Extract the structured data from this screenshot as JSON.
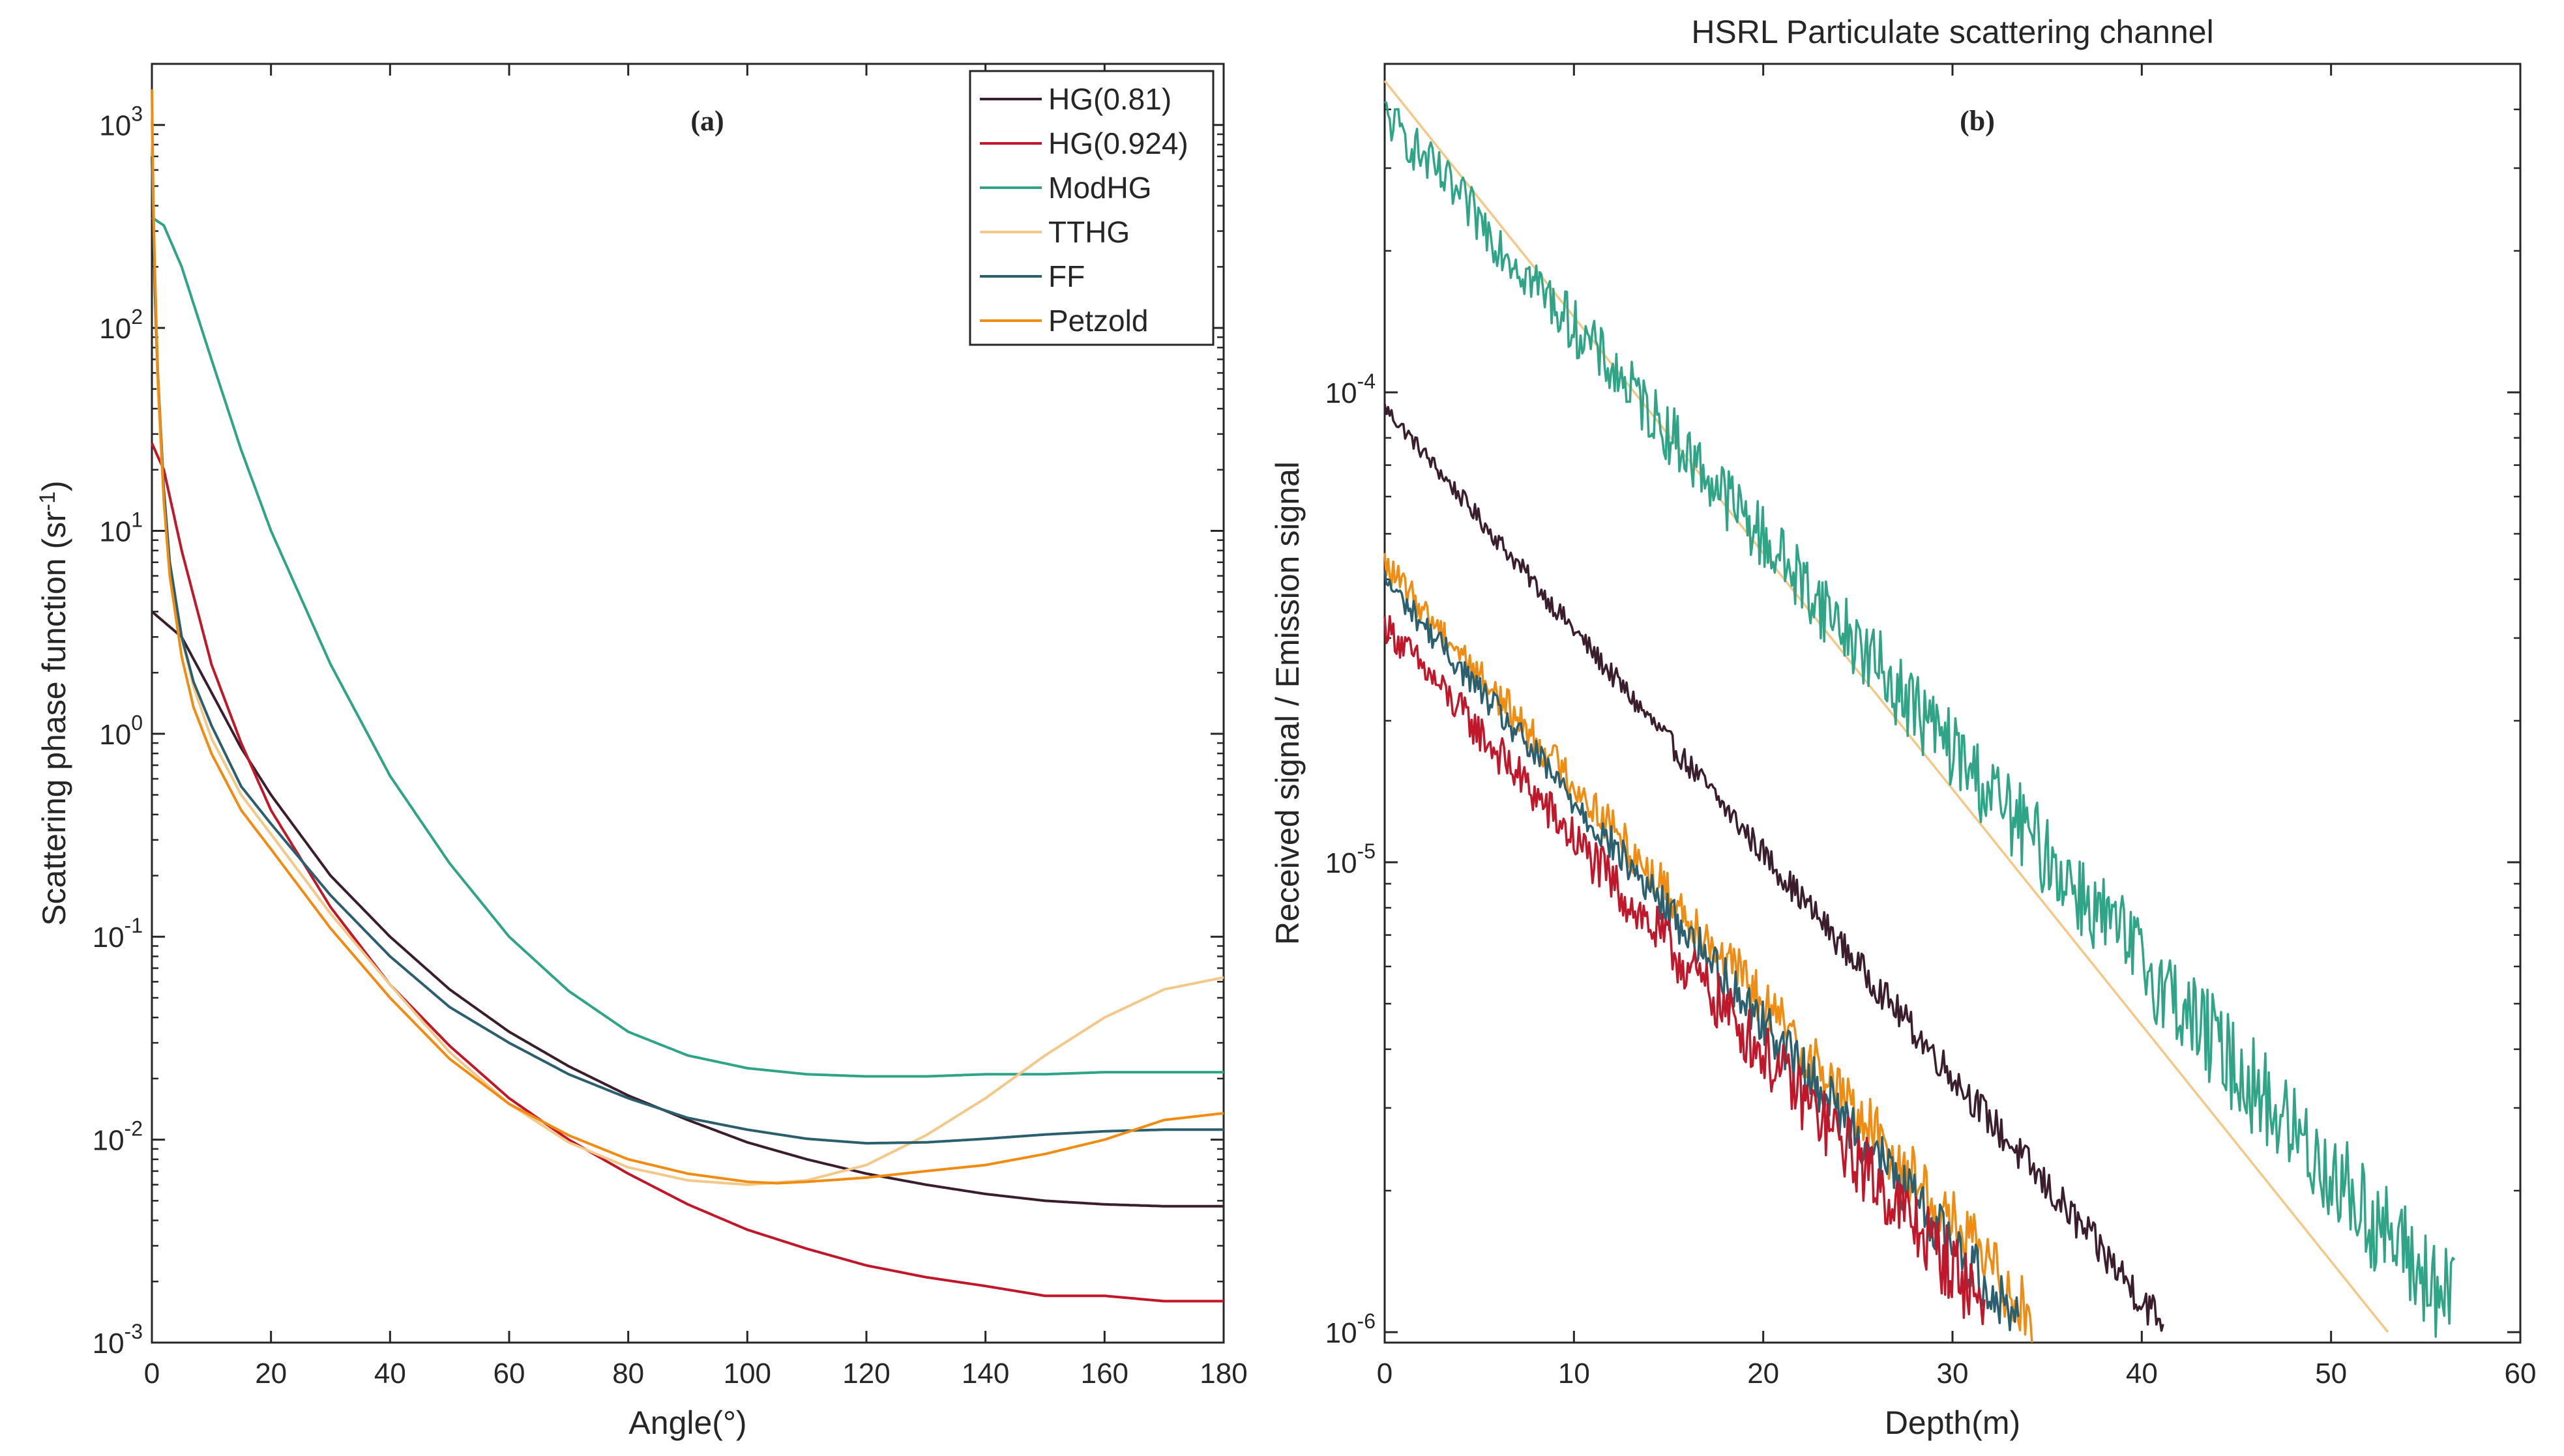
{
  "chart_data": [
    {
      "type": "line",
      "panel_label": "(a)",
      "xlabel": "Angle(°)",
      "ylabel": "Scattering phase function (sr-1)",
      "xlim": [
        0,
        180
      ],
      "ylim": [
        0.001,
        2000
      ],
      "yscale": "log",
      "xticks": [
        "0",
        "20",
        "40",
        "60",
        "80",
        "100",
        "120",
        "140",
        "160",
        "180"
      ],
      "yticks": [
        {
          "base": "10",
          "exp": "3"
        },
        {
          "base": "10",
          "exp": "2"
        },
        {
          "base": "10",
          "exp": "1"
        },
        {
          "base": "10",
          "exp": "0"
        },
        {
          "base": "10",
          "exp": "-1"
        },
        {
          "base": "10",
          "exp": "-2"
        },
        {
          "base": "10",
          "exp": "-3"
        }
      ],
      "legend_position": "top-right",
      "series": [
        {
          "name": "HG(0.81)",
          "color": "#3a1e2e",
          "x": [
            0,
            5,
            10,
            15,
            20,
            30,
            40,
            50,
            60,
            70,
            80,
            90,
            100,
            110,
            120,
            130,
            140,
            150,
            160,
            170,
            180
          ],
          "y": [
            4.0,
            3.0,
            1.6,
            0.85,
            0.5,
            0.2,
            0.1,
            0.055,
            0.034,
            0.023,
            0.0165,
            0.0125,
            0.0097,
            0.008,
            0.0068,
            0.006,
            0.0054,
            0.005,
            0.0048,
            0.0047,
            0.0047
          ]
        },
        {
          "name": "HG(0.924)",
          "color": "#c0182a",
          "x": [
            0,
            2,
            5,
            10,
            15,
            20,
            30,
            40,
            50,
            60,
            70,
            80,
            90,
            100,
            110,
            120,
            130,
            140,
            150,
            160,
            170,
            180
          ],
          "y": [
            27,
            20,
            8,
            2.2,
            0.9,
            0.42,
            0.14,
            0.058,
            0.029,
            0.016,
            0.01,
            0.0068,
            0.0048,
            0.0036,
            0.0029,
            0.0024,
            0.0021,
            0.0019,
            0.0017,
            0.0017,
            0.0016,
            0.0016
          ]
        },
        {
          "name": "ModHG",
          "color": "#2fa487",
          "x": [
            0,
            2,
            5,
            10,
            15,
            20,
            30,
            40,
            50,
            60,
            70,
            80,
            90,
            100,
            110,
            120,
            130,
            140,
            150,
            160,
            170,
            180
          ],
          "y": [
            350,
            320,
            200,
            70,
            25,
            10,
            2.2,
            0.62,
            0.23,
            0.1,
            0.054,
            0.034,
            0.026,
            0.0225,
            0.021,
            0.0205,
            0.0205,
            0.021,
            0.021,
            0.0215,
            0.0215,
            0.0215
          ]
        },
        {
          "name": "TTHG",
          "color": "#f3c98a",
          "x": [
            0,
            0.5,
            1,
            2,
            3,
            5,
            7,
            10,
            15,
            20,
            30,
            40,
            50,
            60,
            70,
            80,
            90,
            100,
            110,
            120,
            130,
            140,
            150,
            160,
            170,
            180
          ],
          "y": [
            1000,
            150,
            50,
            14,
            7,
            3,
            1.7,
            0.95,
            0.5,
            0.32,
            0.13,
            0.058,
            0.027,
            0.015,
            0.0097,
            0.0073,
            0.0063,
            0.006,
            0.0063,
            0.0075,
            0.0105,
            0.016,
            0.026,
            0.04,
            0.055,
            0.063
          ]
        },
        {
          "name": "FF",
          "color": "#2c5f6e",
          "x": [
            0,
            0.5,
            1,
            2,
            3,
            5,
            7,
            10,
            15,
            20,
            30,
            40,
            50,
            60,
            70,
            80,
            90,
            100,
            110,
            120,
            130,
            140,
            150,
            160,
            170,
            180
          ],
          "y": [
            700,
            150,
            60,
            16,
            7,
            3,
            1.8,
            1.1,
            0.55,
            0.36,
            0.16,
            0.08,
            0.045,
            0.03,
            0.021,
            0.016,
            0.0128,
            0.0112,
            0.0101,
            0.0096,
            0.0097,
            0.0101,
            0.0106,
            0.011,
            0.0112,
            0.0112
          ]
        },
        {
          "name": "Petzold",
          "color": "#f08c12",
          "x": [
            0,
            0.3,
            1,
            2,
            3,
            5,
            7,
            10,
            15,
            20,
            30,
            40,
            50,
            60,
            70,
            80,
            90,
            100,
            105,
            110,
            120,
            130,
            140,
            150,
            160,
            170,
            180
          ],
          "y": [
            1500,
            300,
            60,
            14,
            6,
            2.4,
            1.35,
            0.8,
            0.42,
            0.27,
            0.11,
            0.05,
            0.025,
            0.015,
            0.0105,
            0.008,
            0.0068,
            0.0062,
            0.0061,
            0.0062,
            0.0065,
            0.007,
            0.0075,
            0.0085,
            0.01,
            0.0125,
            0.0135
          ]
        }
      ]
    },
    {
      "type": "line",
      "title": "HSRL Particulate scattering channel",
      "panel_label": "(b)",
      "xlabel": "Depth(m)",
      "ylabel": "Received signal / Emission signal",
      "xlim": [
        0,
        60
      ],
      "ylim": [
        9.5e-07,
        0.0005
      ],
      "yscale": "log",
      "xticks": [
        "0",
        "10",
        "20",
        "30",
        "40",
        "50",
        "60"
      ],
      "yticks": [
        {
          "base": "10",
          "exp": "-4"
        },
        {
          "base": "10",
          "exp": "-5"
        },
        {
          "base": "10",
          "exp": "-6"
        }
      ],
      "series": [
        {
          "name": "HG(0.81)",
          "color": "#3a1e2e",
          "start": 9.3e-05,
          "end_depth": 41.5,
          "noise": 0.04
        },
        {
          "name": "HG(0.924)",
          "color": "#c0182a",
          "start": 3.2e-05,
          "end_depth": 33.0,
          "noise": 0.08
        },
        {
          "name": "ModHG",
          "color": "#2fa487",
          "start": 0.00039,
          "end_depth": 57.5,
          "noise": 0.11
        },
        {
          "name": "TTHG",
          "color": "#f3c98a",
          "start": 0.00046,
          "end_depth": 53.0,
          "noise": 0.0
        },
        {
          "name": "FF",
          "color": "#2c5f6e",
          "start": 4e-05,
          "end_depth": 34.0,
          "noise": 0.06
        },
        {
          "name": "Petzold",
          "color": "#f08c12",
          "start": 4.3e-05,
          "end_depth": 35.0,
          "noise": 0.07
        }
      ]
    }
  ]
}
